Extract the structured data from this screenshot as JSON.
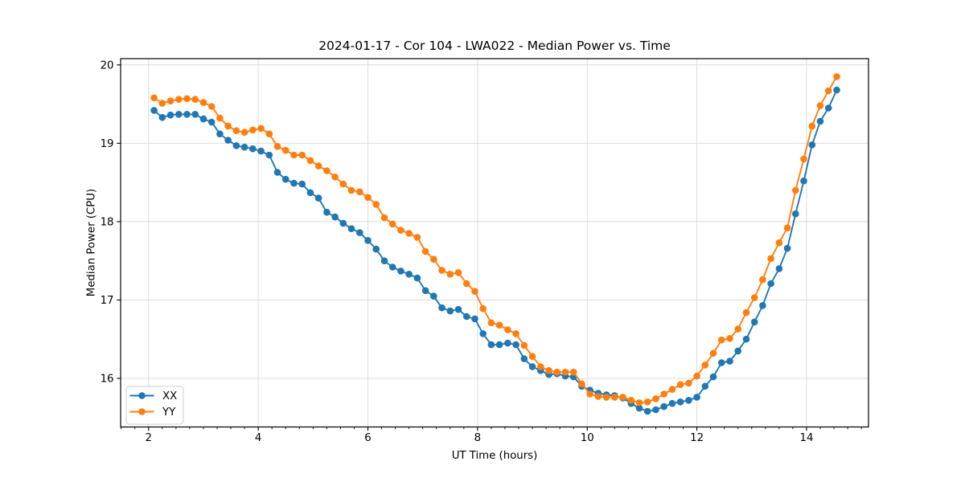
{
  "chart": {
    "title": "2024-01-17 - Cor 104 - LWA022 - Median Power vs. Time",
    "xlabel": "UT Time (hours)",
    "ylabel": "Median Power (CPU)"
  },
  "legend": {
    "position": "lower left",
    "entries": [
      {
        "label": "XX",
        "color": "#1f77b4"
      },
      {
        "label": "YY",
        "color": "#ff7f0e"
      }
    ]
  },
  "colors": {
    "xx_series": "#1f77b4",
    "yy_series": "#ff7f0e",
    "grid": "#dcdcdc",
    "frame": "#000000",
    "legend_border": "#cccccc"
  },
  "chart_data": {
    "type": "line",
    "title": "2024-01-17 - Cor 104 - LWA022 - Median Power vs. Time",
    "xlabel": "UT Time (hours)",
    "ylabel": "Median Power (CPU)",
    "xlim": [
      1.49,
      15.13
    ],
    "ylim": [
      15.38,
      20.08
    ],
    "xticks": [
      2,
      4,
      6,
      8,
      10,
      12,
      14
    ],
    "yticks": [
      16,
      17,
      18,
      19,
      20
    ],
    "minor_xtick_step": 0.25,
    "grid": true,
    "marker": "circle",
    "legend_position": "lower left",
    "x": [
      2.1,
      2.25,
      2.4,
      2.55,
      2.7,
      2.85,
      3.0,
      3.15,
      3.3,
      3.45,
      3.6,
      3.75,
      3.9,
      4.05,
      4.2,
      4.35,
      4.5,
      4.65,
      4.8,
      4.95,
      5.1,
      5.25,
      5.4,
      5.55,
      5.7,
      5.85,
      6.0,
      6.15,
      6.3,
      6.45,
      6.6,
      6.75,
      6.9,
      7.05,
      7.2,
      7.35,
      7.5,
      7.65,
      7.8,
      7.95,
      8.1,
      8.25,
      8.4,
      8.55,
      8.7,
      8.85,
      9.0,
      9.15,
      9.3,
      9.45,
      9.6,
      9.75,
      9.9,
      10.05,
      10.2,
      10.35,
      10.5,
      10.65,
      10.8,
      10.95,
      11.1,
      11.25,
      11.4,
      11.55,
      11.7,
      11.85,
      12.0,
      12.15,
      12.3,
      12.45,
      12.6,
      12.75,
      12.9,
      13.05,
      13.2,
      13.35,
      13.5,
      13.65,
      13.8,
      13.95,
      14.1,
      14.25,
      14.4,
      14.55
    ],
    "series": [
      {
        "name": "XX",
        "color": "#1f77b4",
        "values": [
          19.42,
          19.33,
          19.36,
          19.37,
          19.37,
          19.37,
          19.31,
          19.27,
          19.12,
          19.04,
          18.97,
          18.95,
          18.93,
          18.9,
          18.85,
          18.63,
          18.54,
          18.49,
          18.48,
          18.37,
          18.3,
          18.12,
          18.06,
          17.98,
          17.91,
          17.86,
          17.76,
          17.65,
          17.5,
          17.42,
          17.37,
          17.33,
          17.28,
          17.12,
          17.05,
          16.9,
          16.86,
          16.88,
          16.79,
          16.76,
          16.57,
          16.43,
          16.43,
          16.45,
          16.43,
          16.25,
          16.15,
          16.1,
          16.05,
          16.06,
          16.03,
          16.02,
          15.9,
          15.85,
          15.81,
          15.79,
          15.78,
          15.75,
          15.68,
          15.62,
          15.58,
          15.6,
          15.64,
          15.68,
          15.7,
          15.72,
          15.76,
          15.9,
          16.02,
          16.2,
          16.22,
          16.35,
          16.5,
          16.72,
          16.93,
          17.21,
          17.4,
          17.66,
          18.1,
          18.52,
          18.98,
          19.28,
          19.45,
          19.68
        ]
      },
      {
        "name": "YY",
        "color": "#ff7f0e",
        "values": [
          19.58,
          19.51,
          19.54,
          19.56,
          19.57,
          19.56,
          19.52,
          19.47,
          19.32,
          19.22,
          19.16,
          19.14,
          19.17,
          19.19,
          19.12,
          18.96,
          18.91,
          18.85,
          18.85,
          18.78,
          18.71,
          18.65,
          18.57,
          18.48,
          18.4,
          18.38,
          18.31,
          18.22,
          18.05,
          17.97,
          17.89,
          17.85,
          17.8,
          17.62,
          17.52,
          17.38,
          17.33,
          17.35,
          17.21,
          17.11,
          16.89,
          16.71,
          16.68,
          16.62,
          16.57,
          16.42,
          16.28,
          16.15,
          16.1,
          16.08,
          16.08,
          16.08,
          15.93,
          15.8,
          15.77,
          15.76,
          15.76,
          15.76,
          15.72,
          15.69,
          15.7,
          15.74,
          15.8,
          15.86,
          15.92,
          15.94,
          16.03,
          16.17,
          16.32,
          16.49,
          16.51,
          16.63,
          16.84,
          17.03,
          17.26,
          17.53,
          17.73,
          17.92,
          18.4,
          18.8,
          19.22,
          19.48,
          19.67,
          19.85
        ]
      }
    ]
  }
}
